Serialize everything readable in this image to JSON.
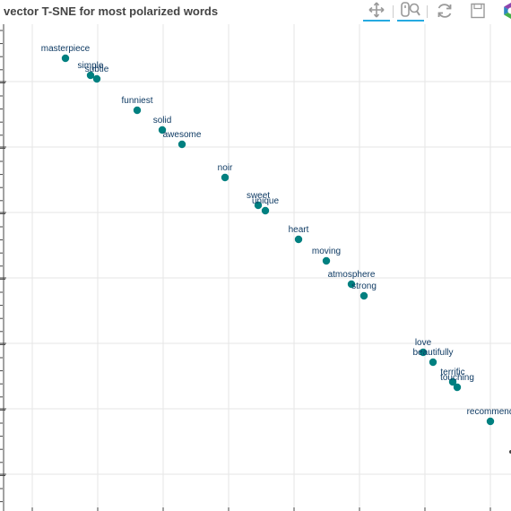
{
  "title": "vector T-SNE for most polarized words",
  "toolbar": {
    "tools": [
      {
        "name": "pan-tool",
        "icon": "pan-icon",
        "active": true
      },
      {
        "name": "wheel-zoom-tool",
        "icon": "wheel-zoom-icon",
        "active": true
      },
      {
        "name": "reset-tool",
        "icon": "reset-icon",
        "active": false
      },
      {
        "name": "save-tool",
        "icon": "save-icon",
        "active": false
      },
      {
        "name": "bokeh-logo",
        "icon": "bokeh-logo-icon",
        "active": false
      }
    ]
  },
  "colors": {
    "point": "#008080",
    "label": "#0e3a63",
    "grid": "#e5e5e5",
    "axis": "#444444",
    "active_tool": "#26aae1"
  },
  "chart_data": {
    "type": "scatter",
    "title": "vector T-SNE for most polarized words",
    "xlabel": "",
    "ylabel": "",
    "xlim": [
      0,
      570
    ],
    "ylim": [
      570,
      27
    ],
    "grid": true,
    "points": [
      {
        "label": "masterpiece",
        "x": 69,
        "y": 65
      },
      {
        "label": "simple",
        "x": 97,
        "y": 84
      },
      {
        "label": "subtle",
        "x": 104,
        "y": 88
      },
      {
        "label": "funniest",
        "x": 149,
        "y": 123
      },
      {
        "label": "solid",
        "x": 177,
        "y": 145
      },
      {
        "label": "awesome",
        "x": 199,
        "y": 161
      },
      {
        "label": "noir",
        "x": 247,
        "y": 198
      },
      {
        "label": "sweet",
        "x": 284,
        "y": 229
      },
      {
        "label": "unique",
        "x": 292,
        "y": 235
      },
      {
        "label": "heart",
        "x": 329,
        "y": 267
      },
      {
        "label": "moving",
        "x": 360,
        "y": 291
      },
      {
        "label": "atmosphere",
        "x": 388,
        "y": 317
      },
      {
        "label": "strong",
        "x": 402,
        "y": 330
      },
      {
        "label": "love",
        "x": 468,
        "y": 393
      },
      {
        "label": "beautifully",
        "x": 479,
        "y": 404
      },
      {
        "label": "terrific",
        "x": 501,
        "y": 426
      },
      {
        "label": "touching",
        "x": 506,
        "y": 432
      },
      {
        "label": "recommend",
        "x": 543,
        "y": 470
      }
    ]
  }
}
